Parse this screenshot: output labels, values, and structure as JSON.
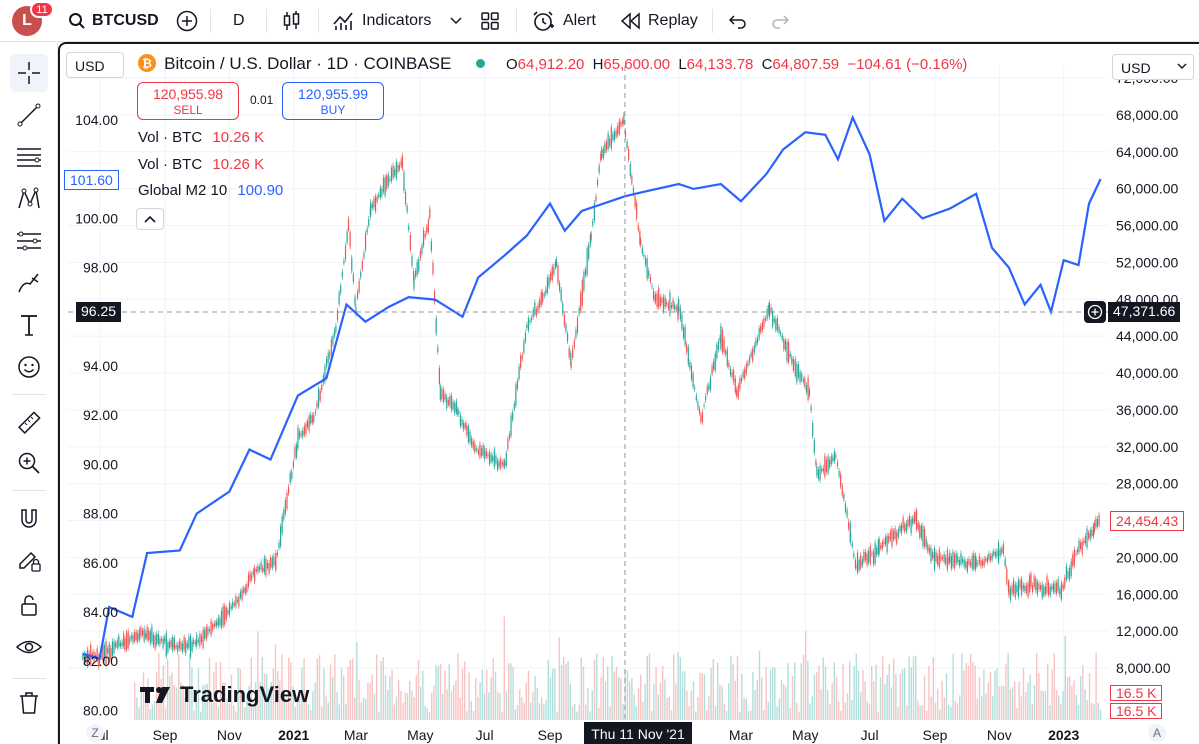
{
  "header": {
    "avatar_letter": "L",
    "avatar_badge": "11",
    "symbol": "BTCUSD",
    "interval": "D",
    "indicators_label": "Indicators",
    "alert_label": "Alert",
    "replay_label": "Replay"
  },
  "chart_header": {
    "currency_left": "USD",
    "currency_right": "USD",
    "title": "Bitcoin / U.S. Dollar · 1D · COINBASE",
    "ohlc": {
      "o_label": "O",
      "o": "64,912.20",
      "h_label": "H",
      "h": "65,600.00",
      "l_label": "L",
      "l": "64,133.78",
      "c_label": "C",
      "c": "64,807.59",
      "change": "−104.61 (−0.16%)"
    },
    "sell_price": "120,955.98",
    "sell_label": "SELL",
    "spread": "0.01",
    "buy_price": "120,955.99",
    "buy_label": "BUY",
    "vol1_label": "Vol · BTC",
    "vol1_value": "10.26 K",
    "vol2_label": "Vol · BTC",
    "vol2_value": "10.26 K",
    "m2_label": "Global M2 10",
    "m2_value": "100.90",
    "m2_tag": "101.60",
    "crosshair_left": "96.25",
    "crosshair_right": "47,371.66",
    "btc_last_tag": "24,454.43",
    "vol_tag1": "16.5 K",
    "vol_tag2": "16.5 K",
    "crosshair_date": "Thu 11 Nov '21",
    "watermark": "TradingView",
    "axis_z": "Z",
    "axis_a": "A"
  },
  "chart_data": {
    "type": "line",
    "left_axis": {
      "ticks": [
        "104.00",
        "102.00",
        "100.00",
        "98.00",
        "96.00",
        "94.00",
        "92.00",
        "90.00",
        "88.00",
        "86.00",
        "84.00",
        "82.00",
        "80.00"
      ],
      "range": [
        80,
        105
      ]
    },
    "right_axis": {
      "ticks": [
        "72,000.00",
        "68,000.00",
        "64,000.00",
        "60,000.00",
        "56,000.00",
        "52,000.00",
        "48,000.00",
        "44,000.00",
        "40,000.00",
        "36,000.00",
        "32,000.00",
        "28,000.00",
        "24,000.00",
        "20,000.00",
        "16,000.00",
        "12,000.00",
        "8,000.00"
      ],
      "range": [
        6000,
        72000
      ]
    },
    "x_ticks": [
      "Jul",
      "Sep",
      "Nov",
      "2021",
      "Mar",
      "May",
      "Jul",
      "Sep",
      "'22",
      "Mar",
      "May",
      "Jul",
      "Sep",
      "Nov",
      "2023"
    ],
    "series": [
      {
        "name": "Global M2 10",
        "color": "#2962ff",
        "axis": "left",
        "points": [
          [
            "2020-06-15",
            82.3
          ],
          [
            "2020-07-01",
            82.1
          ],
          [
            "2020-07-10",
            84.2
          ],
          [
            "2020-08-01",
            83.8
          ],
          [
            "2020-08-15",
            86.4
          ],
          [
            "2020-09-15",
            86.5
          ],
          [
            "2020-10-01",
            88.0
          ],
          [
            "2020-11-01",
            88.9
          ],
          [
            "2020-11-20",
            90.6
          ],
          [
            "2020-12-10",
            90.2
          ],
          [
            "2021-01-05",
            92.8
          ],
          [
            "2021-02-01",
            93.5
          ],
          [
            "2021-02-20",
            96.5
          ],
          [
            "2021-03-10",
            95.8
          ],
          [
            "2021-04-01",
            96.4
          ],
          [
            "2021-04-20",
            96.8
          ],
          [
            "2021-05-15",
            96.7
          ],
          [
            "2021-06-10",
            96.0
          ],
          [
            "2021-06-25",
            97.6
          ],
          [
            "2021-07-20",
            98.5
          ],
          [
            "2021-08-10",
            99.3
          ],
          [
            "2021-09-01",
            100.6
          ],
          [
            "2021-09-15",
            99.5
          ],
          [
            "2021-10-01",
            100.3
          ],
          [
            "2021-11-11",
            100.9
          ],
          [
            "2021-12-01",
            101.1
          ],
          [
            "2022-01-01",
            101.4
          ],
          [
            "2022-01-15",
            101.2
          ],
          [
            "2022-02-10",
            101.4
          ],
          [
            "2022-03-01",
            100.7
          ],
          [
            "2022-03-25",
            101.8
          ],
          [
            "2022-04-10",
            102.8
          ],
          [
            "2022-05-01",
            103.5
          ],
          [
            "2022-05-20",
            103.4
          ],
          [
            "2022-06-01",
            102.4
          ],
          [
            "2022-06-15",
            104.1
          ],
          [
            "2022-07-01",
            102.6
          ],
          [
            "2022-07-15",
            99.9
          ],
          [
            "2022-08-01",
            100.8
          ],
          [
            "2022-08-20",
            100.0
          ],
          [
            "2022-09-15",
            100.4
          ],
          [
            "2022-10-10",
            101.0
          ],
          [
            "2022-10-25",
            98.8
          ],
          [
            "2022-11-10",
            98.0
          ],
          [
            "2022-11-25",
            96.5
          ],
          [
            "2022-12-10",
            97.3
          ],
          [
            "2022-12-20",
            96.2
          ],
          [
            "2023-01-01",
            98.3
          ],
          [
            "2023-01-15",
            98.1
          ],
          [
            "2023-01-25",
            100.6
          ],
          [
            "2023-02-05",
            101.6
          ]
        ]
      },
      {
        "name": "BTCUSD",
        "color": "#7a2f2f",
        "axis": "right",
        "points": [
          [
            "2020-06-15",
            9400
          ],
          [
            "2020-07-01",
            9200
          ],
          [
            "2020-07-25",
            11000
          ],
          [
            "2020-08-15",
            11800
          ],
          [
            "2020-09-10",
            10300
          ],
          [
            "2020-10-01",
            10700
          ],
          [
            "2020-10-20",
            12900
          ],
          [
            "2020-11-10",
            15500
          ],
          [
            "2020-11-25",
            18500
          ],
          [
            "2020-12-15",
            19500
          ],
          [
            "2021-01-05",
            33000
          ],
          [
            "2021-01-20",
            35000
          ],
          [
            "2021-02-10",
            45000
          ],
          [
            "2021-02-22",
            56000
          ],
          [
            "2021-03-01",
            47000
          ],
          [
            "2021-03-15",
            58000
          ],
          [
            "2021-04-14",
            63000
          ],
          [
            "2021-04-25",
            50000
          ],
          [
            "2021-05-10",
            57000
          ],
          [
            "2021-05-20",
            38000
          ],
          [
            "2021-06-05",
            36000
          ],
          [
            "2021-06-22",
            31800
          ],
          [
            "2021-07-20",
            30000
          ],
          [
            "2021-08-10",
            45000
          ],
          [
            "2021-08-25",
            48000
          ],
          [
            "2021-09-07",
            52000
          ],
          [
            "2021-09-21",
            41000
          ],
          [
            "2021-10-10",
            55000
          ],
          [
            "2021-10-20",
            64000
          ],
          [
            "2021-11-10",
            67500
          ],
          [
            "2021-11-26",
            54000
          ],
          [
            "2021-12-10",
            48000
          ],
          [
            "2022-01-01",
            47000
          ],
          [
            "2022-01-22",
            35000
          ],
          [
            "2022-02-10",
            44000
          ],
          [
            "2022-02-25",
            38000
          ],
          [
            "2022-03-28",
            47000
          ],
          [
            "2022-04-20",
            41000
          ],
          [
            "2022-05-05",
            38000
          ],
          [
            "2022-05-12",
            29000
          ],
          [
            "2022-05-30",
            31000
          ],
          [
            "2022-06-13",
            22500
          ],
          [
            "2022-06-18",
            19000
          ],
          [
            "2022-07-10",
            21000
          ],
          [
            "2022-08-13",
            24300
          ],
          [
            "2022-08-30",
            20000
          ],
          [
            "2022-09-15",
            19800
          ],
          [
            "2022-10-10",
            19200
          ],
          [
            "2022-11-05",
            21000
          ],
          [
            "2022-11-10",
            16500
          ],
          [
            "2022-12-01",
            17000
          ],
          [
            "2022-12-30",
            16500
          ],
          [
            "2023-01-14",
            20800
          ],
          [
            "2023-01-30",
            23000
          ],
          [
            "2023-02-05",
            24454
          ]
        ]
      }
    ]
  }
}
